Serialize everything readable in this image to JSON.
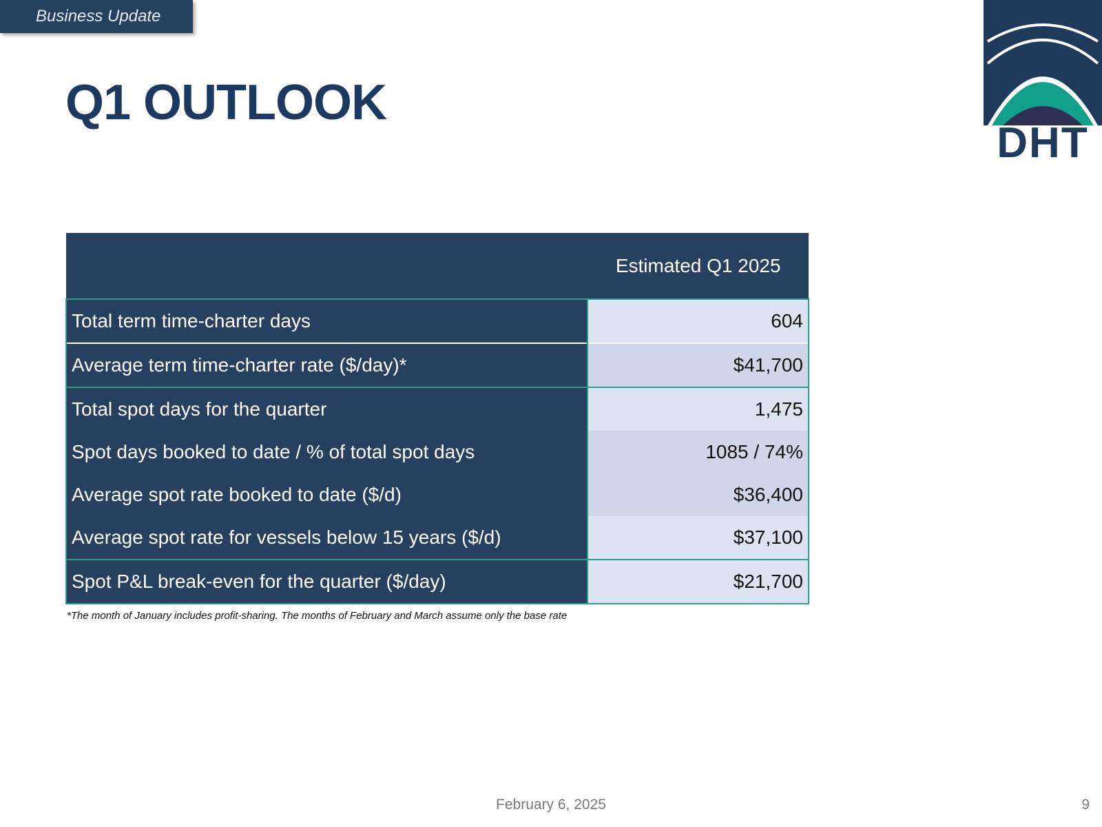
{
  "header": {
    "section_tag": "Business Update",
    "title": "Q1 OUTLOOK",
    "logo_text": "DHT"
  },
  "table": {
    "column_header": "Estimated Q1 2025",
    "rows": [
      {
        "label": "Total term time-charter days",
        "value": "604"
      },
      {
        "label": "Average term time-charter rate ($/day)*",
        "value": "$41,700"
      },
      {
        "label": "Total spot days for the quarter",
        "value": "1,475"
      },
      {
        "label": "Spot days booked to date / % of total spot days",
        "value": "1085 / 74%"
      },
      {
        "label": "Average spot rate booked to date ($/d)",
        "value": "$36,400"
      },
      {
        "label": "Average spot rate for vessels below 15 years ($/d)",
        "value": "$37,100"
      },
      {
        "label": "Spot P&L break-even for the quarter ($/day)",
        "value": "$21,700"
      }
    ]
  },
  "footnote": "*The month of January includes profit-sharing. The months of February and March assume only the base rate",
  "footer": {
    "date": "February 6, 2025",
    "page_number": "9"
  },
  "colors": {
    "navy": "#27405f",
    "title_blue": "#1c3a61",
    "teal": "#2a9d8f",
    "value_light": "#dbe4f0",
    "value_dark": "#cfd6e8"
  }
}
